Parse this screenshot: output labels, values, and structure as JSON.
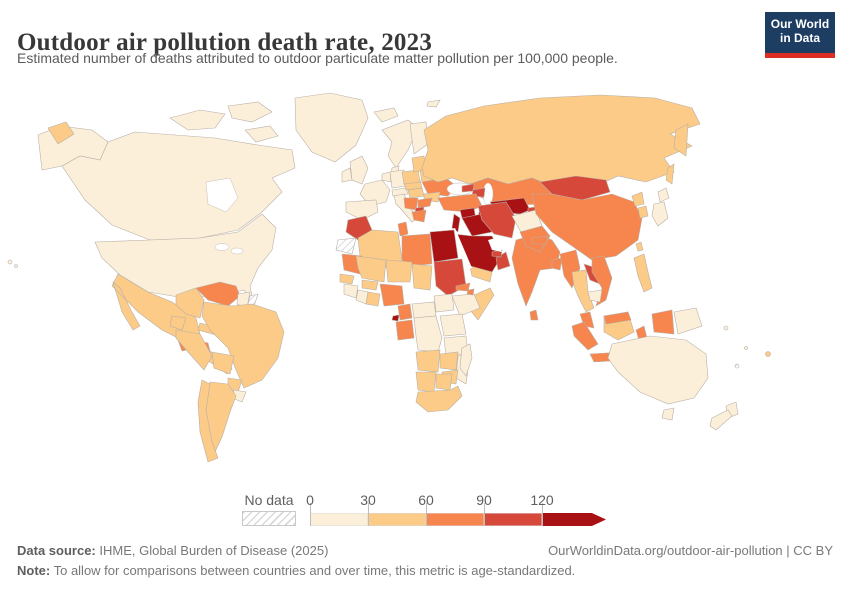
{
  "header": {
    "title": "Outdoor air pollution death rate, 2023",
    "subtitle": "Estimated number of deaths attributed to outdoor particulate matter pollution per 100,000 people.",
    "logo": {
      "line1": "Our World",
      "line2": "in Data",
      "bg_color": "#1d3d63",
      "accent_color": "#dc2e22"
    }
  },
  "legend": {
    "no_data_label": "No data",
    "ticks": [
      "0",
      "30",
      "60",
      "90",
      "120"
    ]
  },
  "footer": {
    "source_label": "Data source:",
    "source_text": " IHME, Global Burden of Disease (2025)",
    "link_text": "OurWorldinData.org/outdoor-air-pollution | CC BY",
    "note_label": "Note:",
    "note_text": " To allow for comparisons between countries and over time, this metric is age-standardized."
  },
  "chart_data": {
    "type": "choropleth-world-map",
    "title": "Outdoor air pollution death rate, 2023",
    "unit": "deaths per 100,000 people (age-standardized)",
    "year": 2023,
    "legend_position": "bottom",
    "no_data_style": "gray-hatch",
    "bins": [
      {
        "range": "0-30",
        "color": "#fcefda"
      },
      {
        "range": "30-60",
        "color": "#fbcb87"
      },
      {
        "range": "60-90",
        "color": "#f6854e"
      },
      {
        "range": "90-120",
        "color": "#d6483a"
      },
      {
        "range": "120+",
        "color": "#a91214"
      }
    ],
    "regions": {
      "greenland": 0,
      "canadian-arctic": 0,
      "alaska": 0,
      "canada": 0,
      "usa": 0,
      "hawaii": 0,
      "chukotka": 1,
      "mexico": 1,
      "guatemala": 2,
      "honduras": 2,
      "central-america": 1,
      "cuba": 1,
      "hispaniola": 2,
      "colombia": 1,
      "venezuela": 2,
      "guyana": 0,
      "french-guiana": "no_data",
      "ecuador": 1,
      "peru": 1,
      "brazil": 1,
      "bolivia": 1,
      "paraguay": 1,
      "uruguay": 0,
      "argentina": 1,
      "chile": 1,
      "iceland": 0,
      "svalbard": 0,
      "uk": 0,
      "ireland": 0,
      "norway-sweden": 0,
      "finland": 0,
      "denmark": 0,
      "germany": 0,
      "benelux": 0,
      "france": 0,
      "iberia": 0,
      "italy": 0,
      "switzerland-austria": 0,
      "czechia-slovakia": 1,
      "hungary": 1,
      "poland": 1,
      "baltics": 1,
      "belarus": 1,
      "ukraine": 2,
      "romania": 1,
      "balkans-west": 2,
      "bulgaria": 2,
      "north-macedonia": 3,
      "greece": 2,
      "russia": 1,
      "kamchatka": 1,
      "sakhalin": 1,
      "kazakhstan": 2,
      "uzbekistan": 4,
      "turkmenistan": 4,
      "kyrgyzstan": 1,
      "tajikistan": 3,
      "georgia": 3,
      "azerbaijan": 3,
      "turkey": 2,
      "syria": 4,
      "levant": 4,
      "iraq": 4,
      "iran": 3,
      "afghanistan": 0,
      "pakistan": 2,
      "saudi-arabia": 4,
      "yemen": 1,
      "oman": 3,
      "uae": 3,
      "morocco": 3,
      "western-sahara": "no_data",
      "algeria": 1,
      "tunisia": 2,
      "libya": 2,
      "egypt": 4,
      "mauritania": 2,
      "mali": 1,
      "niger": 1,
      "chad": 1,
      "sudan": 3,
      "eritrea": 2,
      "senegal": 1,
      "guinea": 0,
      "ivory-coast": 0,
      "ghana": 1,
      "burkina-faso": 1,
      "nigeria": 2,
      "cameroon": 2,
      "equatorial-guinea": 4,
      "gabon-congo": 2,
      "central-african-republic": 0,
      "south-sudan": 0,
      "ethiopia": 0,
      "djibouti": 2,
      "somalia": 1,
      "drc": 0,
      "uganda-kenya": 0,
      "tanzania": 0,
      "angola": 1,
      "zambia": 1,
      "mozambique": 0,
      "zimbabwe": 1,
      "namibia": 1,
      "botswana": 1,
      "south-africa": 1,
      "madagascar": 0,
      "mongolia": 3,
      "china": 2,
      "north-korea": 1,
      "south-korea": 1,
      "japan": 0,
      "taiwan": 1,
      "india": 2,
      "nepal": 2,
      "bangladesh": 2,
      "sri-lanka": 2,
      "myanmar": 2,
      "thailand": 1,
      "laos": 3,
      "vietnam": 2,
      "cambodia": 0,
      "malaysia": 2,
      "sumatra": 2,
      "java": 2,
      "kalimantan": 1,
      "malaysia-borneo": 2,
      "sulawesi": 2,
      "philippines": 1,
      "indonesia-papua": 2,
      "papua-new-guinea": 0,
      "fiji": 1,
      "solomon-islands": 0,
      "vanuatu": 0,
      "new-caledonia": "no_data",
      "australia": 0,
      "tasmania": 0,
      "new-zealand": 0
    }
  }
}
